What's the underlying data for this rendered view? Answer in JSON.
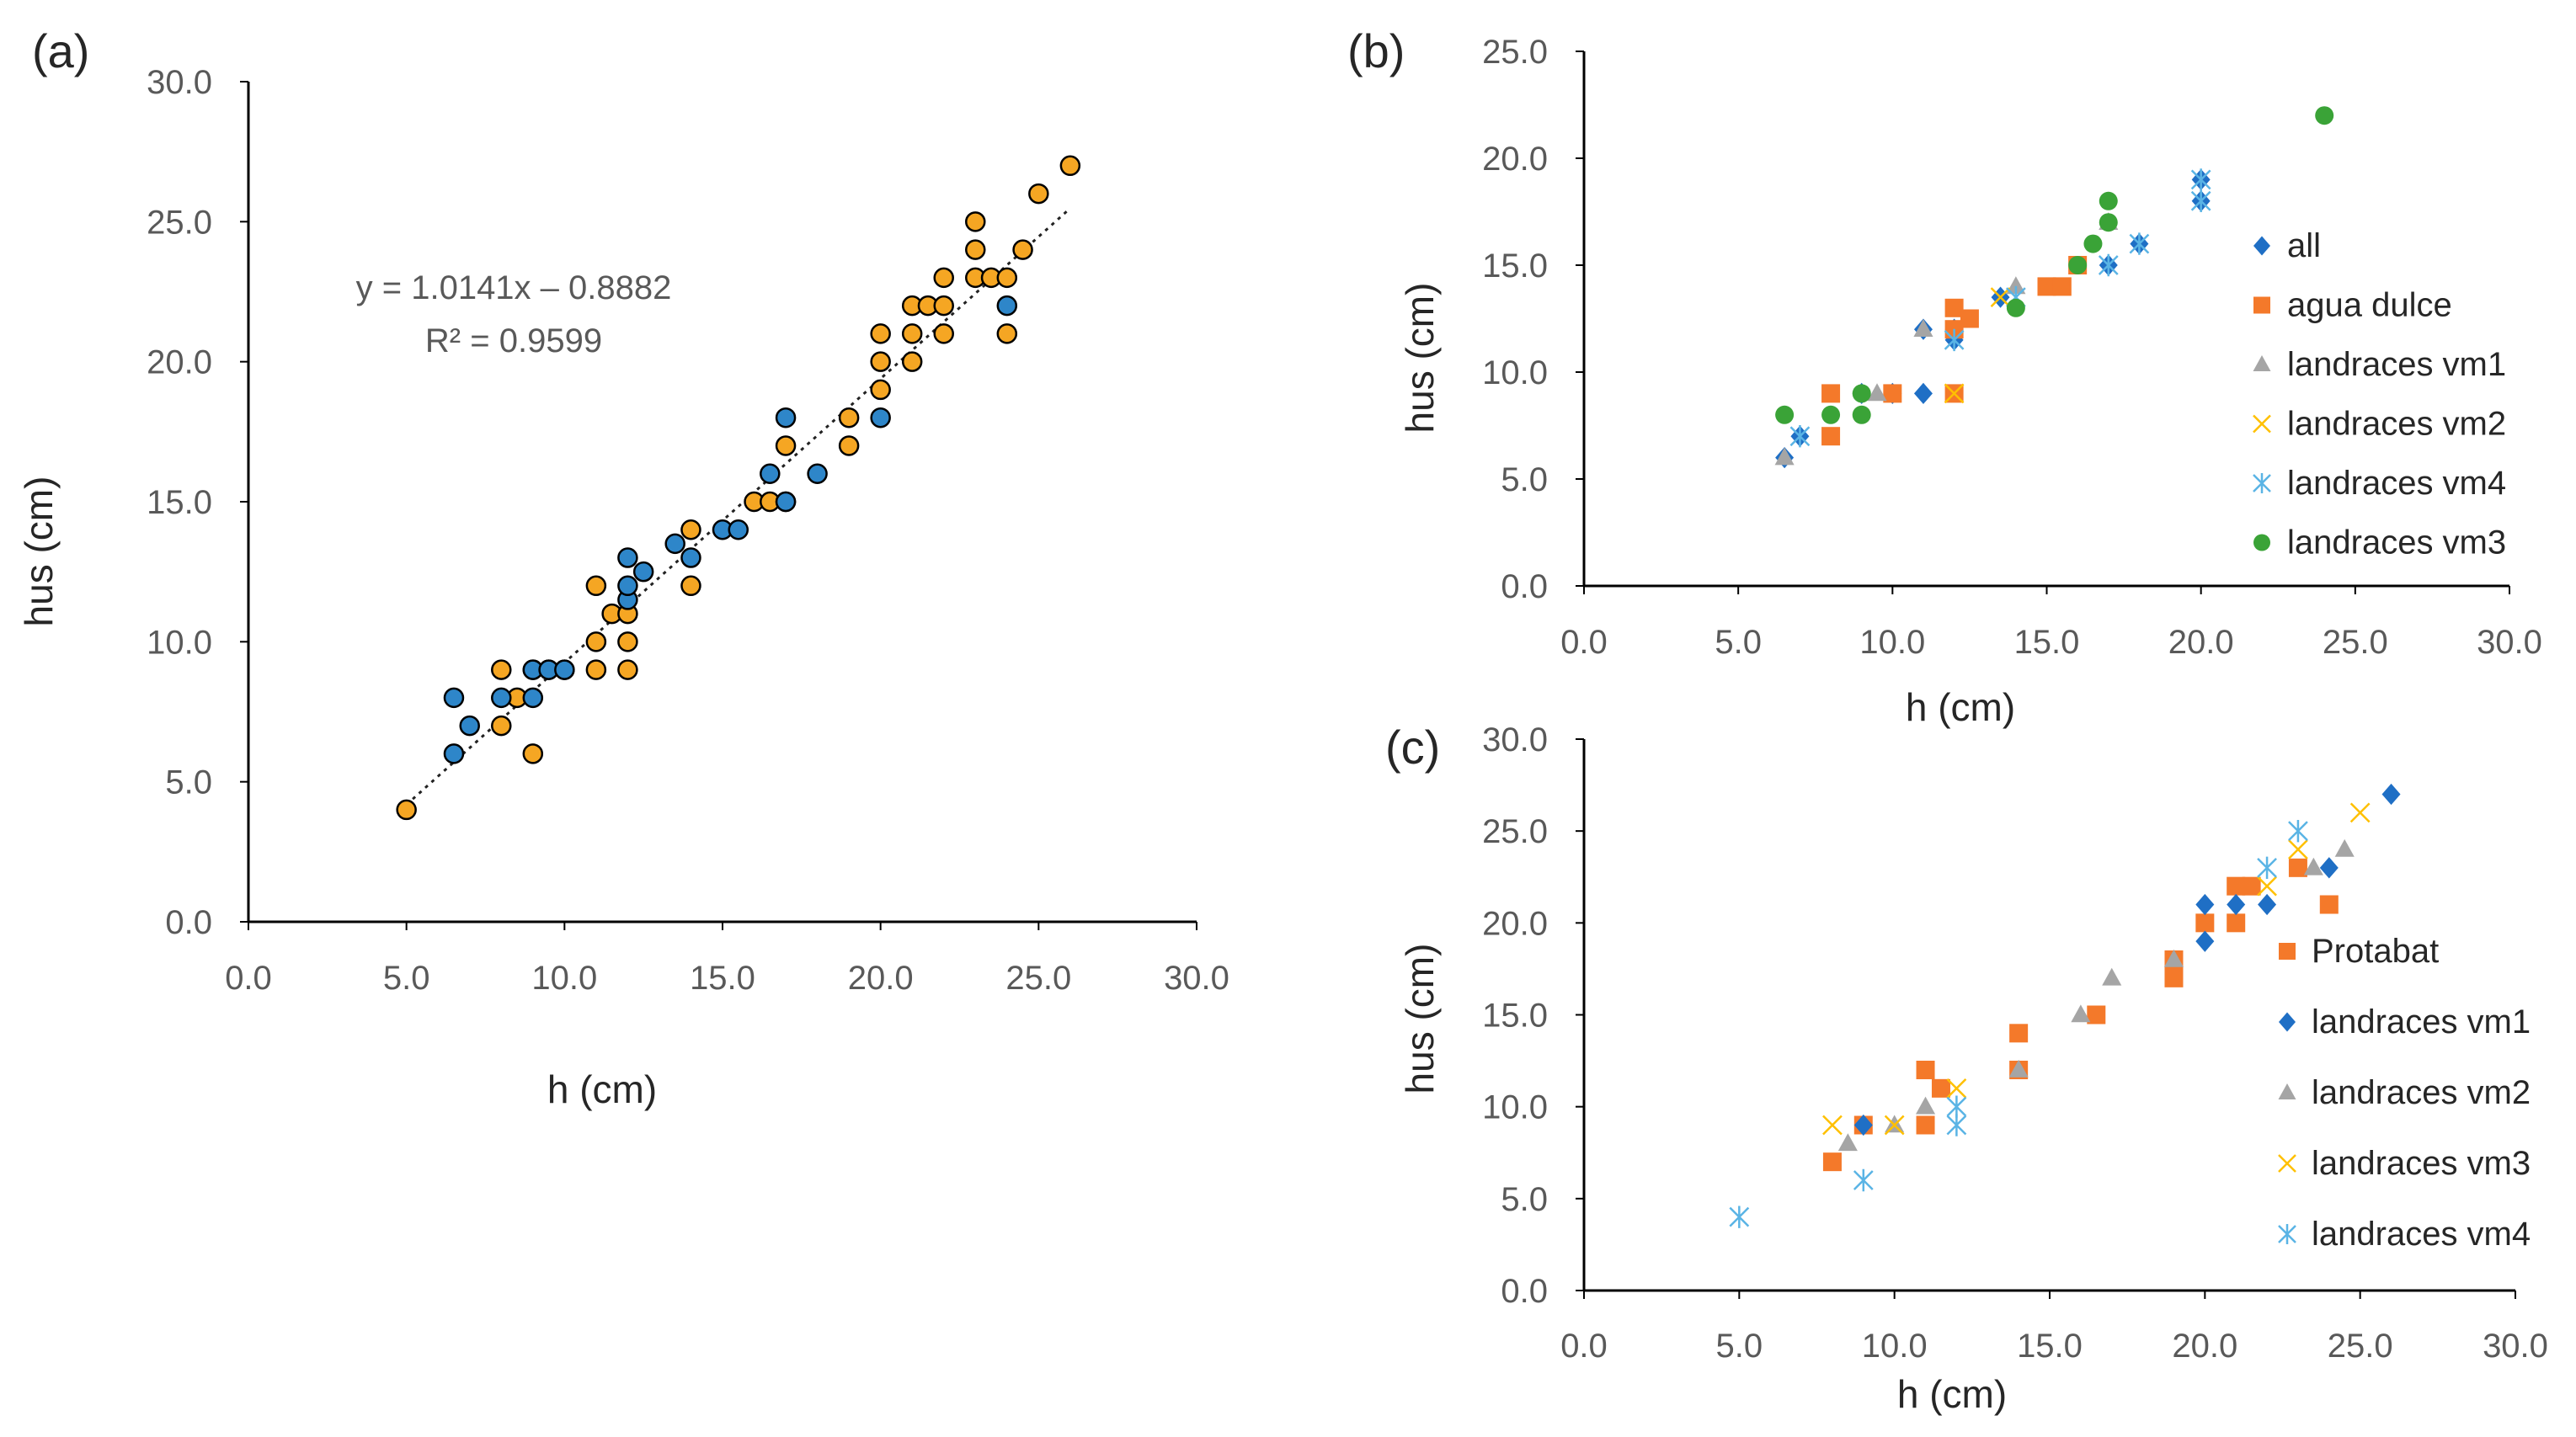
{
  "colors": {
    "orange": "#F5A623",
    "blue": "#2E86C9",
    "darkblue": "#1F6FC5",
    "squareorange": "#F4792A",
    "gray": "#A5A5A5",
    "gold": "#FFC000",
    "lightblue": "#5AB4E5",
    "green": "#3AA337",
    "axis": "#000000",
    "tick_text": "#595959"
  },
  "chart_data": [
    {
      "id": "a",
      "panel_label": "(a)",
      "type": "scatter",
      "xlabel": "h  (cm)",
      "ylabel": "hus (cm)",
      "xlim": [
        0,
        30
      ],
      "ylim": [
        0,
        30
      ],
      "xticks": [
        "0.0",
        "5.0",
        "10.0",
        "15.0",
        "20.0",
        "25.0",
        "30.0"
      ],
      "yticks": [
        "0.0",
        "5.0",
        "10.0",
        "15.0",
        "20.0",
        "25.0",
        "30.0"
      ],
      "grid": false,
      "trendline": {
        "equation": "y = 1.0141x – 0.8882",
        "r2": "R² = 0.9599",
        "slope": 1.0141,
        "intercept": -0.8882,
        "x_range": [
          5,
          26
        ]
      },
      "series": [
        {
          "marker": "circle-outlined",
          "color_key": "orange",
          "points": [
            [
              5,
              4
            ],
            [
              8,
              7
            ],
            [
              8,
              9
            ],
            [
              8.5,
              8
            ],
            [
              9,
              6
            ],
            [
              9,
              9
            ],
            [
              9.5,
              9
            ],
            [
              10,
              9
            ],
            [
              11,
              9
            ],
            [
              11,
              10
            ],
            [
              11,
              12
            ],
            [
              11.5,
              11
            ],
            [
              12,
              9
            ],
            [
              12,
              10
            ],
            [
              12,
              11
            ],
            [
              14,
              12
            ],
            [
              14,
              14
            ],
            [
              16,
              15
            ],
            [
              16.5,
              15
            ],
            [
              17,
              15
            ],
            [
              17,
              17
            ],
            [
              19,
              17
            ],
            [
              19,
              18
            ],
            [
              20,
              19
            ],
            [
              20,
              20
            ],
            [
              20,
              21
            ],
            [
              21,
              20
            ],
            [
              21,
              21
            ],
            [
              21,
              22
            ],
            [
              21.5,
              22
            ],
            [
              22,
              21
            ],
            [
              22,
              22
            ],
            [
              22,
              23
            ],
            [
              23,
              23
            ],
            [
              23,
              24
            ],
            [
              23,
              25
            ],
            [
              23.5,
              23
            ],
            [
              24,
              21
            ],
            [
              24,
              23
            ],
            [
              24.5,
              24
            ],
            [
              25,
              26
            ],
            [
              26,
              27
            ]
          ]
        },
        {
          "marker": "circle-outlined",
          "color_key": "blue",
          "points": [
            [
              6.5,
              6
            ],
            [
              6.5,
              8
            ],
            [
              7,
              7
            ],
            [
              8,
              8
            ],
            [
              9,
              8
            ],
            [
              9,
              9
            ],
            [
              9.5,
              9
            ],
            [
              10,
              9
            ],
            [
              12,
              11.5
            ],
            [
              12,
              12
            ],
            [
              12,
              13
            ],
            [
              12.5,
              12.5
            ],
            [
              13.5,
              13.5
            ],
            [
              14,
              13
            ],
            [
              15,
              14
            ],
            [
              15.5,
              14
            ],
            [
              16.5,
              16
            ],
            [
              17,
              15
            ],
            [
              17,
              18
            ],
            [
              18,
              16
            ],
            [
              20,
              18
            ],
            [
              24,
              22
            ]
          ]
        }
      ]
    },
    {
      "id": "b",
      "panel_label": "(b)",
      "type": "scatter",
      "xlabel": "h  (cm)",
      "ylabel": "hus (cm)",
      "xlim": [
        0,
        30
      ],
      "ylim": [
        0,
        25
      ],
      "xticks": [
        "0.0",
        "5.0",
        "10.0",
        "15.0",
        "20.0",
        "25.0",
        "30.0"
      ],
      "yticks": [
        "0.0",
        "5.0",
        "10.0",
        "15.0",
        "20.0",
        "25.0"
      ],
      "grid": false,
      "legend_position": "right",
      "series": [
        {
          "name": "all",
          "marker": "diamond",
          "color_key": "darkblue",
          "points": [
            [
              6.5,
              6
            ],
            [
              7,
              7
            ],
            [
              9,
              9
            ],
            [
              10,
              9
            ],
            [
              11,
              9
            ],
            [
              11,
              12
            ],
            [
              12,
              11.5
            ],
            [
              12,
              12
            ],
            [
              13.5,
              13.5
            ],
            [
              17,
              15
            ],
            [
              18,
              16
            ],
            [
              20,
              18
            ],
            [
              20,
              19
            ]
          ]
        },
        {
          "name": "agua dulce",
          "marker": "square",
          "color_key": "squareorange",
          "points": [
            [
              8,
              7
            ],
            [
              8,
              9
            ],
            [
              10,
              9
            ],
            [
              12,
              9
            ],
            [
              12,
              12
            ],
            [
              12,
              13
            ],
            [
              12.5,
              12.5
            ],
            [
              15,
              14
            ],
            [
              15.5,
              14
            ],
            [
              16,
              15
            ]
          ]
        },
        {
          "name": "landraces vm1",
          "marker": "triangle",
          "color_key": "gray",
          "points": [
            [
              6.5,
              6
            ],
            [
              9.5,
              9
            ],
            [
              11,
              12
            ],
            [
              14,
              14
            ],
            [
              17,
              17
            ]
          ]
        },
        {
          "name": "landraces vm2",
          "marker": "x",
          "color_key": "gold",
          "points": [
            [
              12,
              9
            ],
            [
              13.5,
              13.5
            ]
          ]
        },
        {
          "name": "landraces vm4",
          "marker": "asterisk",
          "color_key": "lightblue",
          "points": [
            [
              7,
              7
            ],
            [
              12,
              11.5
            ],
            [
              14,
              13.5
            ],
            [
              17,
              15
            ],
            [
              18,
              16
            ],
            [
              20,
              18
            ],
            [
              20,
              19
            ]
          ]
        },
        {
          "name": "landraces vm3",
          "marker": "circle",
          "color_key": "green",
          "points": [
            [
              6.5,
              8
            ],
            [
              8,
              8
            ],
            [
              9,
              8
            ],
            [
              9,
              9
            ],
            [
              14,
              13
            ],
            [
              16,
              15
            ],
            [
              16.5,
              16
            ],
            [
              17,
              17
            ],
            [
              17,
              18
            ],
            [
              24,
              22
            ]
          ]
        }
      ]
    },
    {
      "id": "c",
      "panel_label": "(c)",
      "type": "scatter",
      "xlabel": "h  (cm)",
      "ylabel": "hus (cm)",
      "xlim": [
        0,
        30
      ],
      "ylim": [
        0,
        30
      ],
      "xticks": [
        "0.0",
        "5.0",
        "10.0",
        "15.0",
        "20.0",
        "25.0",
        "30.0"
      ],
      "yticks": [
        "0.0",
        "5.0",
        "10.0",
        "15.0",
        "20.0",
        "25.0",
        "30.0"
      ],
      "grid": false,
      "legend_position": "right",
      "series": [
        {
          "name": "Protabat",
          "marker": "square",
          "color_key": "squareorange",
          "points": [
            [
              8,
              7
            ],
            [
              9,
              9
            ],
            [
              11,
              9
            ],
            [
              11,
              12
            ],
            [
              11.5,
              11
            ],
            [
              14,
              12
            ],
            [
              14,
              14
            ],
            [
              16.5,
              15
            ],
            [
              19,
              17
            ],
            [
              19,
              18
            ],
            [
              20,
              20
            ],
            [
              21,
              20
            ],
            [
              21,
              22
            ],
            [
              21.5,
              22
            ],
            [
              23,
              23
            ],
            [
              24,
              21
            ]
          ]
        },
        {
          "name": "landraces vm1",
          "marker": "diamond",
          "color_key": "darkblue",
          "points": [
            [
              9,
              9
            ],
            [
              20,
              19
            ],
            [
              20,
              21
            ],
            [
              21,
              21
            ],
            [
              22,
              21
            ],
            [
              24,
              23
            ],
            [
              26,
              27
            ]
          ]
        },
        {
          "name": "landraces vm2",
          "marker": "triangle",
          "color_key": "gray",
          "points": [
            [
              8.5,
              8
            ],
            [
              10,
              9
            ],
            [
              11,
              10
            ],
            [
              14,
              12
            ],
            [
              16,
              15
            ],
            [
              17,
              17
            ],
            [
              19,
              18
            ],
            [
              23.5,
              23
            ],
            [
              24.5,
              24
            ]
          ]
        },
        {
          "name": "landraces vm3",
          "marker": "x",
          "color_key": "gold",
          "points": [
            [
              8,
              9
            ],
            [
              10,
              9
            ],
            [
              12,
              11
            ],
            [
              22,
              22
            ],
            [
              23,
              24
            ],
            [
              25,
              26
            ]
          ]
        },
        {
          "name": "landraces vm4",
          "marker": "asterisk",
          "color_key": "lightblue",
          "points": [
            [
              5,
              4
            ],
            [
              9,
              6
            ],
            [
              12,
              9
            ],
            [
              12,
              10
            ],
            [
              22,
              23
            ],
            [
              23,
              25
            ]
          ]
        }
      ]
    }
  ]
}
